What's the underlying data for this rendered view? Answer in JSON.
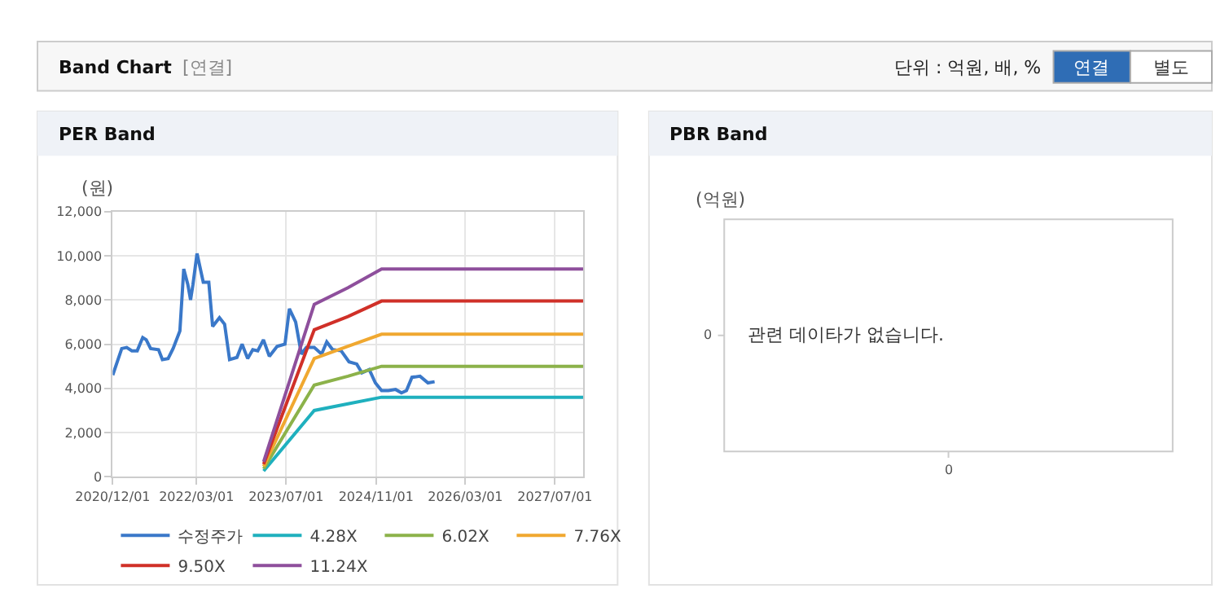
{
  "chart_data": [
    {
      "type": "other",
      "title": "Band Chart",
      "subtitle": "[연결]",
      "annotations": [
        "단위 : 억원, 배, %",
        "연결",
        "별도"
      ]
    },
    {
      "type": "line",
      "title": "PER Band",
      "ylabel": "(원)",
      "legend": "bottom",
      "grid": true,
      "marker": "none",
      "line_style": "solid",
      "xlim": [
        "2020-12-01",
        "2027-12-01"
      ],
      "xticks": [
        {
          "value": "2020-12-01",
          "label": "2020/12/01"
        },
        {
          "value": "2022-03-01",
          "label": "2022/03/01"
        },
        {
          "value": "2023-07-01",
          "label": "2023/07/01"
        },
        {
          "value": "2024-11-01",
          "label": "2024/11/01"
        },
        {
          "value": "2026-03-01",
          "label": "2026/03/01"
        },
        {
          "value": "2027-07-01",
          "label": "2027/07/01"
        }
      ],
      "ylim": [
        0,
        12000
      ],
      "yticks": [
        0,
        {
          "value": 2000,
          "label": "2,000"
        },
        {
          "value": 4000,
          "label": "4,000"
        },
        {
          "value": 6000,
          "label": "6,000"
        },
        {
          "value": 8000,
          "label": "8,000"
        },
        {
          "value": 10000,
          "label": "10,000"
        },
        {
          "value": 12000,
          "label": "12,000"
        }
      ],
      "series": [
        {
          "name": "수정주가",
          "color": "#3a78c9",
          "x": [
            "2020-12-01",
            "2021-01-19",
            "2021-02-15",
            "2021-03-15",
            "2021-04-13",
            "2021-05-13",
            "2021-06-01",
            "2021-06-25",
            "2021-08-07",
            "2021-08-28",
            "2021-09-28",
            "2021-10-25",
            "2021-12-01",
            "2021-12-22",
            "2022-01-13",
            "2022-01-28",
            "2022-02-10",
            "2022-03-04",
            "2022-04-07",
            "2022-05-07",
            "2022-05-28",
            "2022-07-04",
            "2022-08-01",
            "2022-08-28",
            "2022-10-07",
            "2022-11-04",
            "2022-12-04",
            "2023-01-01",
            "2023-01-28",
            "2023-02-28",
            "2023-04-01",
            "2023-05-13",
            "2023-06-25",
            "2023-07-19",
            "2023-08-22",
            "2023-09-22",
            "2023-10-19",
            "2023-12-01",
            "2024-01-10",
            "2024-02-07",
            "2024-03-10",
            "2024-04-25",
            "2024-06-07",
            "2024-07-19",
            "2024-08-16",
            "2024-09-25",
            "2024-10-28",
            "2024-12-01",
            "2025-01-07",
            "2025-02-15",
            "2025-03-19",
            "2025-04-15",
            "2025-05-15",
            "2025-06-28",
            "2025-08-10",
            "2025-09-15"
          ],
          "values": [
            4600,
            5800,
            5850,
            5700,
            5700,
            6300,
            6200,
            5800,
            5750,
            5300,
            5350,
            5800,
            6600,
            9400,
            8700,
            8000,
            8700,
            10100,
            8800,
            8800,
            6800,
            7200,
            6900,
            5300,
            5400,
            6000,
            5350,
            5750,
            5700,
            6200,
            5450,
            5900,
            6000,
            7600,
            7000,
            5550,
            5850,
            5850,
            5550,
            6100,
            5750,
            5700,
            5200,
            5100,
            4700,
            4850,
            4250,
            3900,
            3900,
            3950,
            3800,
            3900,
            4500,
            4550,
            4250,
            4300
          ]
        },
        {
          "name": "4.28X",
          "color": "#1fb0be",
          "x": [
            "2023-03-01",
            "2023-12-01",
            "2024-06-01",
            "2024-12-01",
            "2027-12-01"
          ],
          "values": [
            260,
            3000,
            3300,
            3600,
            3600
          ]
        },
        {
          "name": "6.02X",
          "color": "#8cb24a",
          "x": [
            "2023-03-01",
            "2023-12-01",
            "2024-06-01",
            "2024-12-01",
            "2027-12-01"
          ],
          "values": [
            360,
            4150,
            4550,
            5000,
            5000
          ]
        },
        {
          "name": "7.76X",
          "color": "#f0a830",
          "x": [
            "2023-03-01",
            "2023-12-01",
            "2024-06-01",
            "2024-12-01",
            "2027-12-01"
          ],
          "values": [
            470,
            5350,
            5900,
            6450,
            6450
          ]
        },
        {
          "name": "9.50X",
          "color": "#d03028",
          "x": [
            "2023-03-01",
            "2023-12-01",
            "2024-06-01",
            "2024-12-01",
            "2027-12-01"
          ],
          "values": [
            570,
            6650,
            7250,
            7950,
            7950
          ]
        },
        {
          "name": "11.24X",
          "color": "#8e4f9c",
          "x": [
            "2023-03-01",
            "2023-12-01",
            "2024-06-01",
            "2024-12-01",
            "2027-12-01"
          ],
          "values": [
            680,
            7800,
            8550,
            9400,
            9400
          ]
        }
      ]
    },
    {
      "type": "other",
      "title": "PBR Band",
      "ylabel": "(억원)",
      "annotations": [
        "0",
        "0",
        "관련 데이타가 없습니다."
      ]
    }
  ]
}
